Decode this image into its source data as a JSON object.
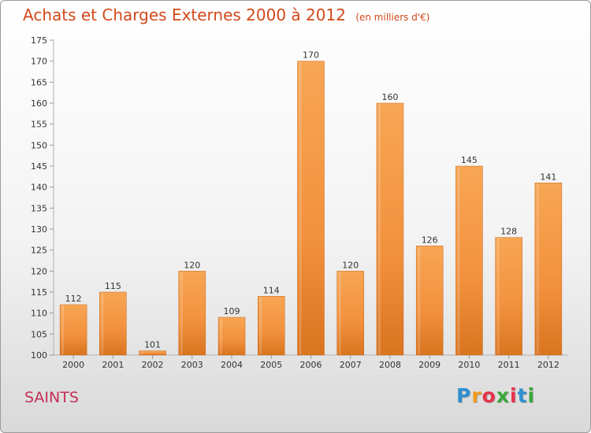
{
  "header": {
    "title": "Achats et Charges Externes 2000 à 2012",
    "subtitle": "(en milliers d'€)"
  },
  "footer": {
    "city": "SAINTS",
    "logo_letters": [
      "P",
      "r",
      "o",
      "x",
      "i",
      "t",
      "i"
    ],
    "logo_colors": [
      "#2f8fd0",
      "#f29a1c",
      "#e8334a",
      "#3aa83a",
      "#e8334a",
      "#2f8fd0",
      "#3aa83a"
    ]
  },
  "chart_data": {
    "type": "bar",
    "title": "Achats et Charges Externes 2000 à 2012",
    "subtitle": "(en milliers d'€)",
    "categories": [
      "2000",
      "2001",
      "2002",
      "2003",
      "2004",
      "2005",
      "2006",
      "2007",
      "2008",
      "2009",
      "2010",
      "2011",
      "2012"
    ],
    "values": [
      112,
      115,
      101,
      120,
      109,
      114,
      170,
      120,
      160,
      126,
      145,
      128,
      141
    ],
    "ylim": [
      100,
      175
    ],
    "ytick_step": 5,
    "grid": false,
    "bar_color": "#f2913d",
    "bar_color_light": "#f7a654",
    "bar_color_dark": "#d9741f",
    "data_labels": true
  }
}
